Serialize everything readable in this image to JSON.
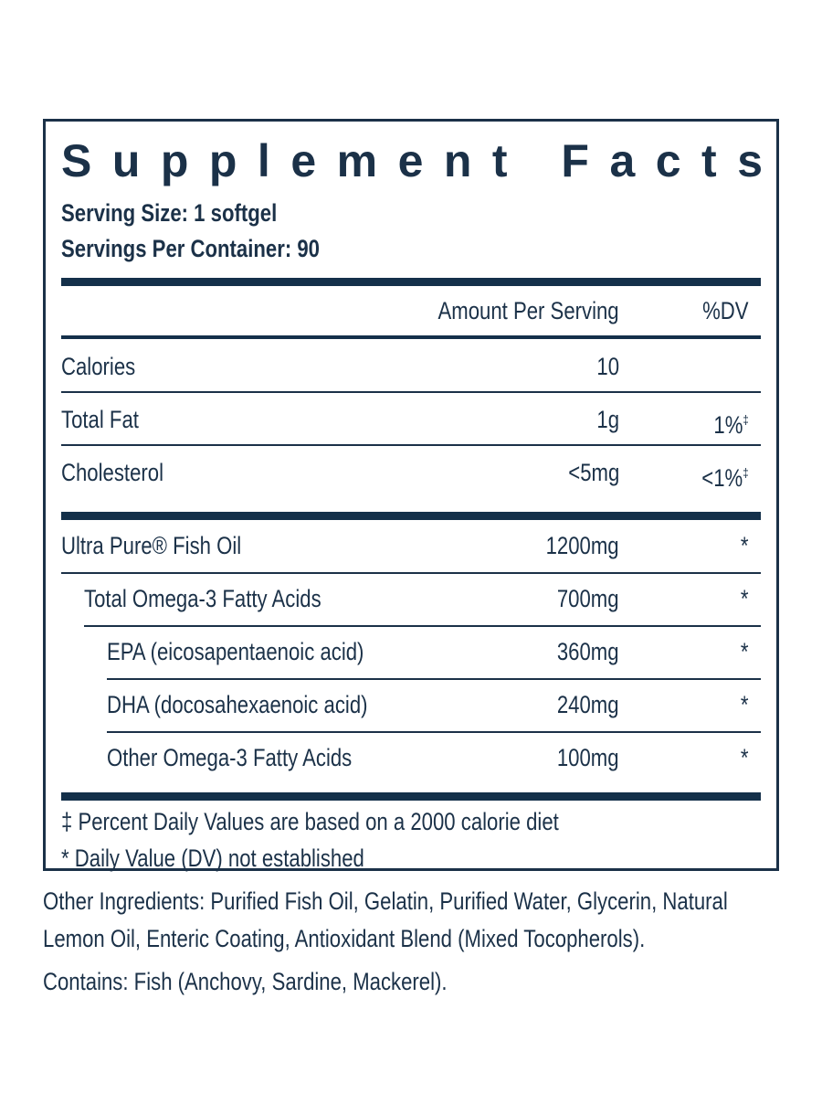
{
  "panel": {
    "title": "Supplement Facts",
    "serving_size": "Serving Size: 1 softgel",
    "servings_per_container": "Servings Per Container: 90",
    "header": {
      "amount": "Amount Per Serving",
      "dv": "%DV"
    },
    "nutrients": [
      {
        "label": "Calories",
        "amount": "10"
      },
      {
        "label": "Total Fat",
        "amount": "1g",
        "dv": "1%",
        "dv_mark": "‡"
      },
      {
        "label": "Cholesterol",
        "amount": "<5mg",
        "dv": "<1%",
        "dv_mark": "‡"
      }
    ],
    "ingredients": [
      {
        "label": "Ultra Pure® Fish Oil",
        "amount": "1200mg",
        "dv": "*",
        "sub": [
          {
            "label": "Total Omega-3 Fatty Acids",
            "amount": "700mg",
            "dv": "*",
            "sub": [
              {
                "label": "EPA (eicosapentaenoic acid)",
                "amount": "360mg",
                "dv": "*"
              },
              {
                "label": "DHA (docosahexaenoic acid)",
                "amount": "240mg",
                "dv": "*"
              },
              {
                "label": "Other Omega-3 Fatty Acids",
                "amount": "100mg",
                "dv": "*"
              }
            ]
          }
        ]
      }
    ],
    "footnotes": [
      "‡ Percent Daily Values are based on a 2000 calorie diet",
      "* Daily Value (DV) not established"
    ]
  },
  "other_ingredients": "Other Ingredients: Purified Fish Oil, Gelatin, Purified Water, Glycerin, Natural Lemon Oil, Enteric Coating, Antioxidant Blend (Mixed Tocopherols).",
  "contains": "Contains: Fish (Anchovy, Sardine, Mackerel)."
}
